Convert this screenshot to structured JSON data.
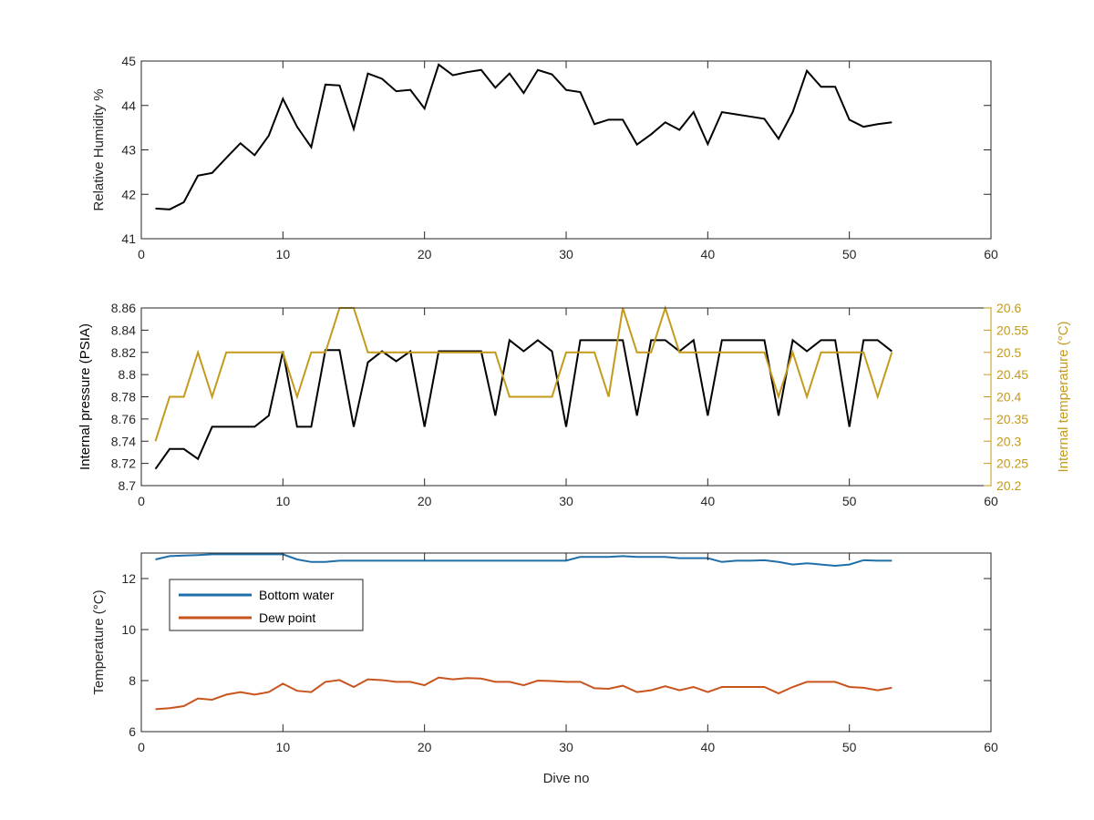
{
  "chart_data": [
    {
      "type": "line",
      "ylabel": "Relative Humidity %",
      "xlabel": "",
      "xlim": [
        0,
        60
      ],
      "ylim": [
        41,
        45
      ],
      "xticks": [
        "0",
        "10",
        "20",
        "30",
        "40",
        "50",
        "60"
      ],
      "yticks": [
        "41",
        "42",
        "43",
        "44",
        "45"
      ],
      "x": [
        1,
        2,
        3,
        4,
        5,
        6,
        7,
        8,
        9,
        10,
        11,
        12,
        13,
        14,
        15,
        16,
        17,
        18,
        19,
        20,
        21,
        22,
        23,
        24,
        25,
        26,
        27,
        28,
        29,
        30,
        31,
        32,
        33,
        34,
        35,
        36,
        37,
        38,
        39,
        40,
        41,
        42,
        43,
        44,
        45,
        46,
        47,
        48,
        49,
        50,
        51,
        52,
        53
      ],
      "series": [
        {
          "color": "#000000",
          "values": [
            41.68,
            41.66,
            41.82,
            42.42,
            42.48,
            42.82,
            43.15,
            42.88,
            43.32,
            44.15,
            43.52,
            43.06,
            44.47,
            44.45,
            43.47,
            44.72,
            44.6,
            44.32,
            44.35,
            43.93,
            44.92,
            44.68,
            44.75,
            44.8,
            44.4,
            44.72,
            44.28,
            44.8,
            44.7,
            44.35,
            44.3,
            43.58,
            43.68,
            43.68,
            43.12,
            43.35,
            43.62,
            43.45,
            43.85,
            43.13,
            43.85,
            43.8,
            43.75,
            43.7,
            43.25,
            43.85,
            44.78,
            44.42,
            44.42,
            43.68,
            43.52,
            43.58,
            43.62
          ]
        }
      ]
    },
    {
      "type": "line",
      "ylabel": "Internal pressure (PSIA)",
      "y2label": "Internal temperature (°C)",
      "xlabel": "",
      "xlim": [
        0,
        60
      ],
      "ylim": [
        8.7,
        8.86
      ],
      "y2lim": [
        20.2,
        20.6
      ],
      "xticks": [
        "0",
        "10",
        "20",
        "30",
        "40",
        "50",
        "60"
      ],
      "yticks": [
        "8.7",
        "8.72",
        "8.74",
        "8.76",
        "8.78",
        "8.8",
        "8.82",
        "8.84",
        "8.86"
      ],
      "y2ticks": [
        "20.2",
        "20.25",
        "20.3",
        "20.35",
        "20.4",
        "20.45",
        "20.5",
        "20.55",
        "20.6"
      ],
      "x": [
        1,
        2,
        3,
        4,
        5,
        6,
        7,
        8,
        9,
        10,
        11,
        12,
        13,
        14,
        15,
        16,
        17,
        18,
        19,
        20,
        21,
        22,
        23,
        24,
        25,
        26,
        27,
        28,
        29,
        30,
        31,
        32,
        33,
        34,
        35,
        36,
        37,
        38,
        39,
        40,
        41,
        42,
        43,
        44,
        45,
        46,
        47,
        48,
        49,
        50,
        51,
        52,
        53
      ],
      "series": [
        {
          "axis": "left",
          "color": "#000000",
          "values": [
            8.715,
            8.733,
            8.733,
            8.724,
            8.753,
            8.753,
            8.753,
            8.753,
            8.763,
            8.821,
            8.753,
            8.753,
            8.822,
            8.822,
            8.753,
            8.811,
            8.821,
            8.812,
            8.821,
            8.753,
            8.821,
            8.821,
            8.821,
            8.821,
            8.763,
            8.831,
            8.821,
            8.831,
            8.821,
            8.753,
            8.831,
            8.831,
            8.831,
            8.831,
            8.763,
            8.831,
            8.831,
            8.821,
            8.831,
            8.763,
            8.831,
            8.831,
            8.831,
            8.831,
            8.763,
            8.831,
            8.821,
            8.831,
            8.831,
            8.753,
            8.831,
            8.831,
            8.821
          ]
        },
        {
          "axis": "right",
          "color": "#C49A1A",
          "values": [
            20.3,
            20.4,
            20.4,
            20.5,
            20.4,
            20.5,
            20.5,
            20.5,
            20.5,
            20.5,
            20.4,
            20.5,
            20.5,
            20.6,
            20.6,
            20.5,
            20.5,
            20.5,
            20.5,
            20.5,
            20.5,
            20.5,
            20.5,
            20.5,
            20.5,
            20.4,
            20.4,
            20.4,
            20.4,
            20.5,
            20.5,
            20.5,
            20.4,
            20.6,
            20.5,
            20.5,
            20.6,
            20.5,
            20.5,
            20.5,
            20.5,
            20.5,
            20.5,
            20.5,
            20.4,
            20.5,
            20.4,
            20.5,
            20.5,
            20.5,
            20.5,
            20.4,
            20.5
          ]
        }
      ]
    },
    {
      "type": "line",
      "ylabel": "Temperature (°C)",
      "xlabel": "Dive no",
      "xlim": [
        0,
        60
      ],
      "ylim": [
        6,
        13
      ],
      "xticks": [
        "0",
        "10",
        "20",
        "30",
        "40",
        "50",
        "60"
      ],
      "yticks": [
        "6",
        "8",
        "10",
        "12"
      ],
      "legend_position": "upper-left",
      "x": [
        1,
        2,
        3,
        4,
        5,
        6,
        7,
        8,
        9,
        10,
        11,
        12,
        13,
        14,
        15,
        16,
        17,
        18,
        19,
        20,
        21,
        22,
        23,
        24,
        25,
        26,
        27,
        28,
        29,
        30,
        31,
        32,
        33,
        34,
        35,
        36,
        37,
        38,
        39,
        40,
        41,
        42,
        43,
        44,
        45,
        46,
        47,
        48,
        49,
        50,
        51,
        52,
        53
      ],
      "series": [
        {
          "name": "Bottom water",
          "color": "#1F6FA8",
          "values": [
            12.75,
            12.88,
            12.9,
            12.92,
            12.95,
            12.95,
            12.95,
            12.95,
            12.95,
            12.95,
            12.75,
            12.65,
            12.65,
            12.7,
            12.7,
            12.7,
            12.7,
            12.7,
            12.7,
            12.7,
            12.7,
            12.7,
            12.7,
            12.7,
            12.7,
            12.7,
            12.7,
            12.7,
            12.7,
            12.7,
            12.85,
            12.85,
            12.85,
            12.88,
            12.85,
            12.85,
            12.85,
            12.8,
            12.8,
            12.8,
            12.65,
            12.7,
            12.7,
            12.72,
            12.65,
            12.55,
            12.6,
            12.55,
            12.5,
            12.55,
            12.72,
            12.7,
            12.7
          ]
        },
        {
          "name": "Dew point",
          "color": "#C9541E",
          "values": [
            6.88,
            6.92,
            7.0,
            7.3,
            7.25,
            7.45,
            7.55,
            7.45,
            7.55,
            7.88,
            7.6,
            7.55,
            7.95,
            8.02,
            7.75,
            8.05,
            8.02,
            7.95,
            7.95,
            7.82,
            8.12,
            8.05,
            8.1,
            8.08,
            7.95,
            7.95,
            7.82,
            8.0,
            7.98,
            7.95,
            7.95,
            7.7,
            7.68,
            7.8,
            7.55,
            7.62,
            7.78,
            7.62,
            7.75,
            7.55,
            7.75,
            7.75,
            7.75,
            7.75,
            7.5,
            7.75,
            7.95,
            7.95,
            7.95,
            7.75,
            7.72,
            7.62,
            7.72
          ]
        }
      ]
    }
  ]
}
